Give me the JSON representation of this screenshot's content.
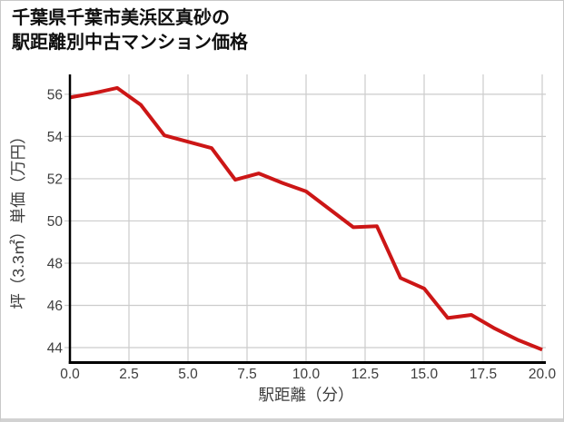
{
  "page": {
    "background": "#ffffff",
    "border_color": "#c9c9c9"
  },
  "title": {
    "line1": "千葉県千葉市美浜区真砂の",
    "line2": "駅距離別中古マンション価格"
  },
  "chart_data": {
    "type": "line",
    "title": "千葉県千葉市美浜区真砂の駅距離別中古マンション価格",
    "xlabel": "駅距離（分）",
    "ylabel": "坪（3.3㎡）単価（万円）",
    "x": [
      0,
      1,
      2,
      3,
      4,
      5,
      6,
      7,
      8,
      9,
      10,
      11,
      12,
      13,
      14,
      15,
      16,
      17,
      18,
      19,
      20
    ],
    "values": [
      55.85,
      56.05,
      56.3,
      55.5,
      54.05,
      53.75,
      53.45,
      51.95,
      52.25,
      51.8,
      51.4,
      50.55,
      49.7,
      49.75,
      47.3,
      46.8,
      45.4,
      45.55,
      44.9,
      44.35,
      43.9
    ],
    "xlim": [
      0,
      20
    ],
    "ylim": [
      43.3,
      56.94
    ],
    "x_ticks": {
      "values": [
        0,
        2.5,
        5,
        7.5,
        10,
        12.5,
        15,
        17.5,
        20
      ],
      "labels": [
        "0.0",
        "2.5",
        "5.0",
        "7.5",
        "10.0",
        "12.5",
        "15.0",
        "17.5",
        "20.0"
      ]
    },
    "y_ticks": {
      "values": [
        44,
        46,
        48,
        50,
        52,
        54,
        56
      ],
      "labels": [
        "44",
        "46",
        "48",
        "50",
        "52",
        "54",
        "56"
      ]
    },
    "grid": true,
    "legend": false,
    "line_color": "#cc1616",
    "line_width": 4,
    "grid_color": "#cccccc",
    "axis_color": "#000000",
    "tick_label_color": "#3d3d3d"
  }
}
